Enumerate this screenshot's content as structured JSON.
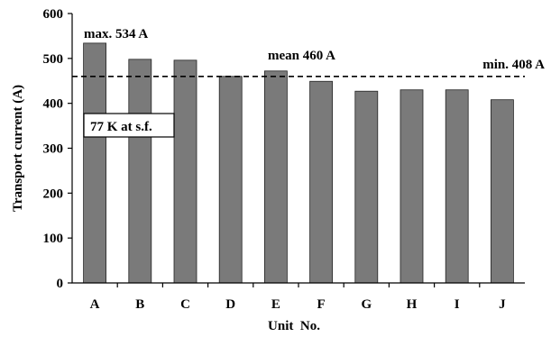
{
  "chart_data": {
    "type": "bar",
    "categories": [
      "A",
      "B",
      "C",
      "D",
      "E",
      "F",
      "G",
      "H",
      "I",
      "J"
    ],
    "values": [
      534,
      498,
      496,
      460,
      472,
      449,
      427,
      430,
      430,
      408
    ],
    "xlabel": "Unit  No.",
    "ylabel": "Transport current (A)",
    "ylim": [
      0,
      600
    ],
    "yticks": [
      0,
      100,
      200,
      300,
      400,
      500,
      600
    ],
    "grid": false,
    "reference_line": {
      "value": 460,
      "style": "dashed"
    },
    "annotations": {
      "max": "max. 534 A",
      "mean": "mean 460 A",
      "min": "min. 408 A",
      "condition": "77 K at s.f."
    }
  }
}
